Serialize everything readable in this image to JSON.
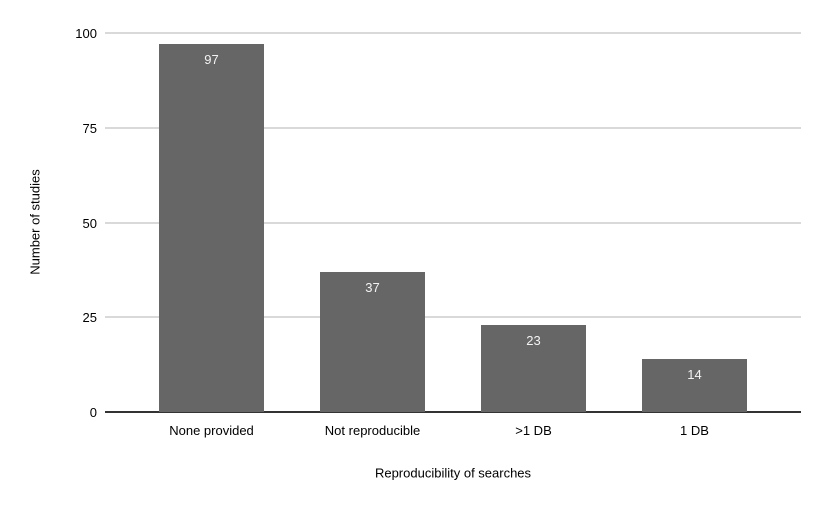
{
  "chart_data": {
    "type": "bar",
    "title": "",
    "categories": [
      "None provided",
      "Not reproducible",
      ">1 DB",
      "1 DB"
    ],
    "values": [
      97,
      37,
      23,
      14
    ],
    "xlabel": "Reproducibility of searches",
    "ylabel": "Number of studies",
    "ylim": [
      0,
      100
    ],
    "yticks": [
      0,
      25,
      50,
      75,
      100
    ],
    "grid": "horizontal",
    "legend": "none",
    "value_labels": "inside-top",
    "colors": {
      "bar": "#666666",
      "value_label": "#f3f3f3",
      "gridline": "#d9d9d9",
      "axis_line": "#333333",
      "text": "#000000",
      "background": "#ffffff"
    }
  }
}
